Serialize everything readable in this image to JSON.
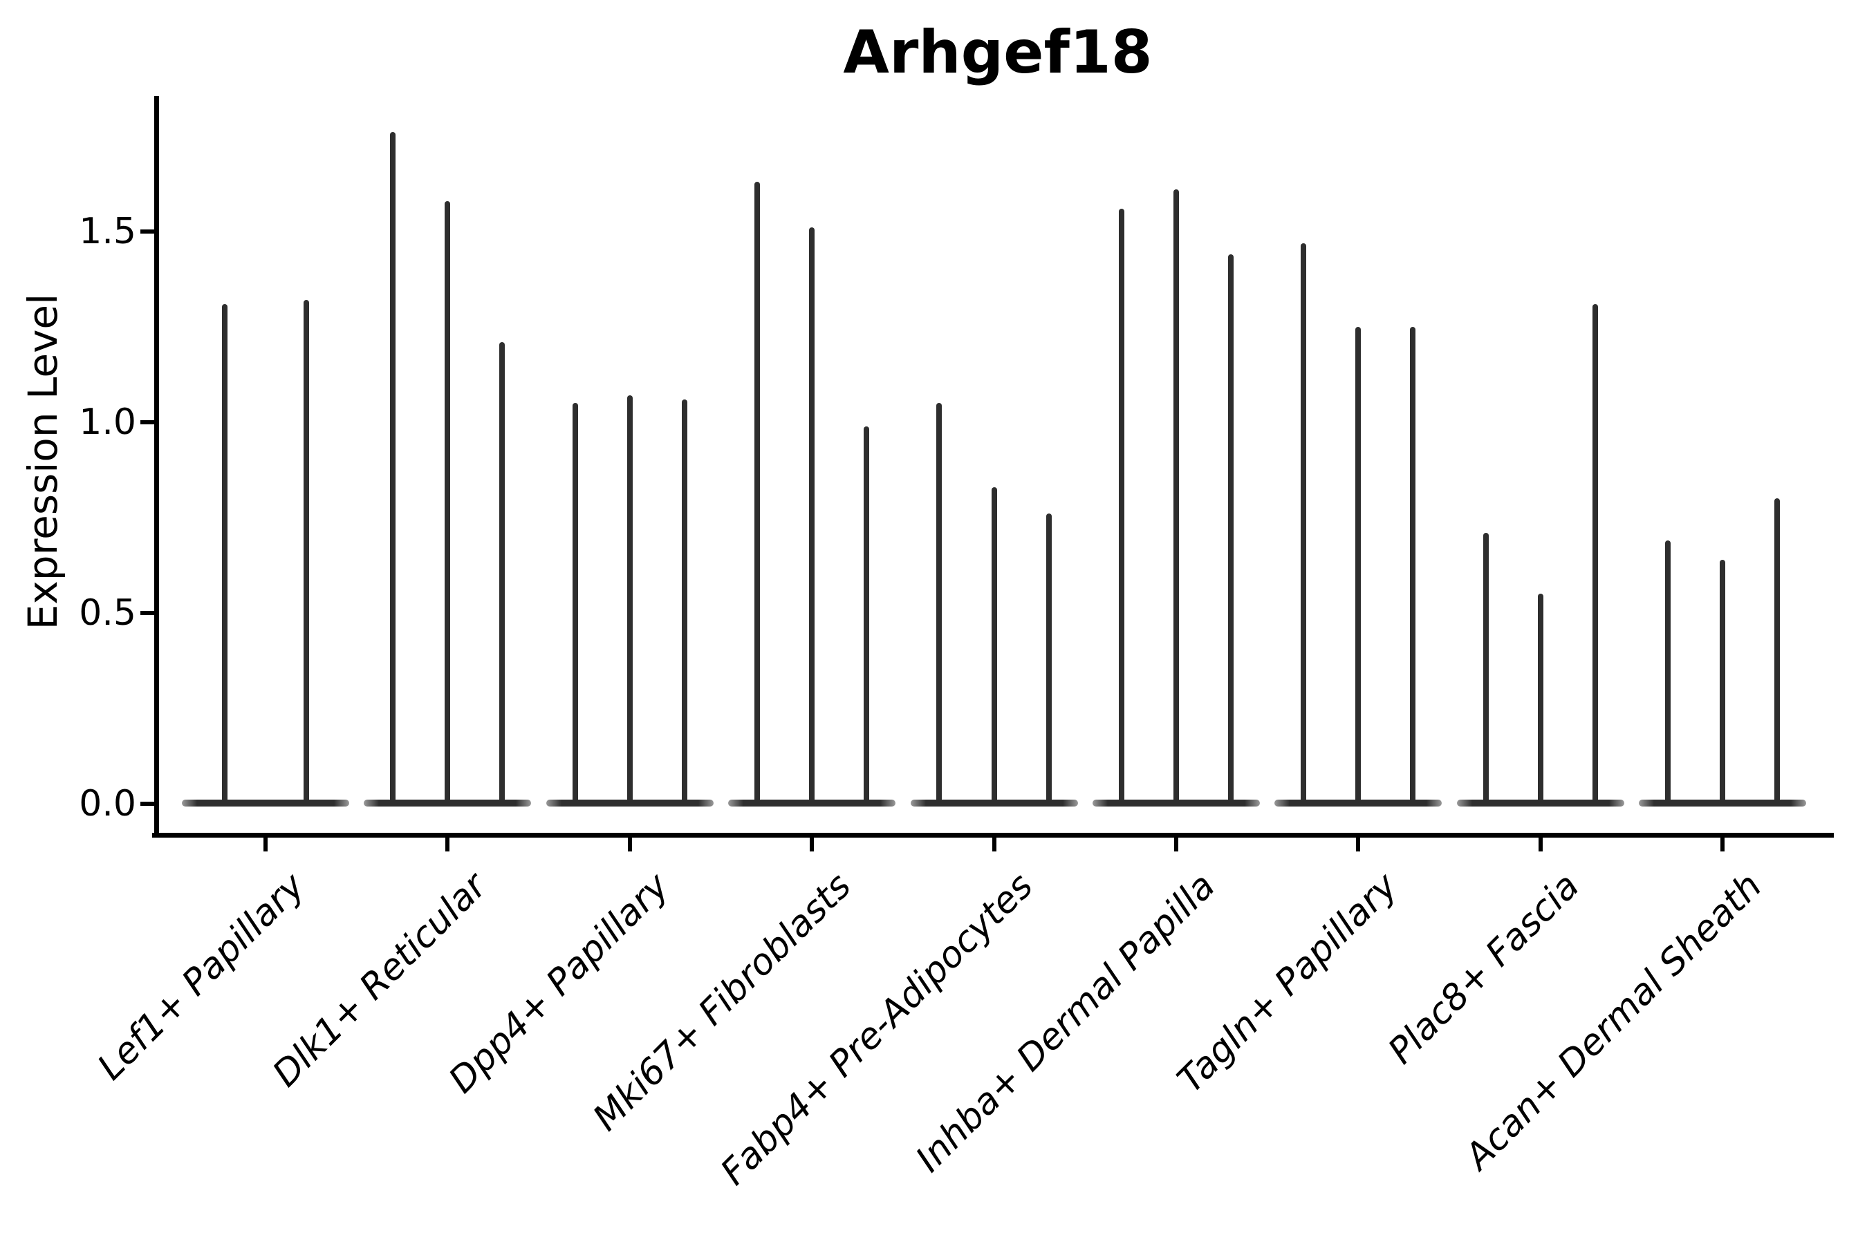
{
  "chart_data": {
    "type": "violin",
    "title": "Arhgef18",
    "ylabel": "Expression Level",
    "xlabel": "",
    "ytick_labels": [
      "0.0",
      "0.5",
      "1.0",
      "1.5"
    ],
    "ytick_values": [
      0.0,
      0.5,
      1.0,
      1.5
    ],
    "ylim": [
      -0.08,
      1.85
    ],
    "grid": false,
    "legend": null,
    "categories": [
      "Lef1+ Papillary",
      "Dlk1+ Reticular",
      "Dpp4+ Papillary",
      "Mki67+ Fibroblasts",
      "Fabp4+ Pre-Adipocytes",
      "Inhba+ Dermal Papilla",
      "Tagln+ Papillary",
      "Plac8+ Fascia",
      "Acan+ Dermal Sheath"
    ],
    "violin_max_values_per_category": [
      [
        1.31,
        1.32
      ],
      [
        1.76,
        1.58,
        1.21
      ],
      [
        1.05,
        1.07,
        1.06
      ],
      [
        1.63,
        1.51,
        0.99
      ],
      [
        1.05,
        0.83,
        0.76
      ],
      [
        1.56,
        1.61,
        1.44
      ],
      [
        1.47,
        1.25,
        1.25
      ],
      [
        0.71,
        0.55,
        1.31
      ],
      [
        0.69,
        0.64,
        0.8
      ]
    ],
    "violin_shape_note": "Needle-thin violins: bulk of distribution collapsed in a flat body at 0 with a thin spike rising to the max value",
    "style": {
      "violin_color": "#2e2e2e",
      "violin_tip_color": "#9a9a9a",
      "axis_color": "#000000",
      "text_color": "#000000",
      "background": "#ffffff",
      "title_bold": true,
      "x_labels_italic": true,
      "x_label_rotation_deg": 45
    }
  }
}
